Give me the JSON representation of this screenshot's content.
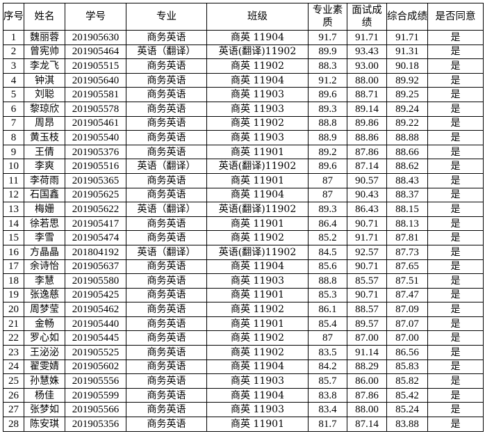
{
  "headers": [
    "序号",
    "姓名",
    "学号",
    "专业",
    "班级",
    "专业素质",
    "面试成绩",
    "综合成绩",
    "是否同意"
  ],
  "rows": [
    [
      "1",
      "魏丽蓉",
      "201905630",
      "商务英语",
      "商英 11904",
      "91.7",
      "91.71",
      "91.71",
      "是"
    ],
    [
      "2",
      "曾宪帅",
      "201905464",
      "英语（翻译）",
      "英语(翻译)11902",
      "89.9",
      "93.43",
      "91.31",
      "是"
    ],
    [
      "3",
      "李龙飞",
      "201905515",
      "商务英语",
      "商英 11902",
      "88.3",
      "93.00",
      "90.18",
      "是"
    ],
    [
      "4",
      "钟淇",
      "201905640",
      "商务英语",
      "商英 11904",
      "91.2",
      "88.00",
      "89.92",
      "是"
    ],
    [
      "5",
      "刘聪",
      "201905581",
      "商务英语",
      "商英 11903",
      "89.6",
      "88.71",
      "89.25",
      "是"
    ],
    [
      "6",
      "黎琼欣",
      "201905578",
      "商务英语",
      "商英 11903",
      "89.3",
      "89.14",
      "89.24",
      "是"
    ],
    [
      "7",
      "周昂",
      "201905461",
      "商务英语",
      "商英 11902",
      "88.8",
      "89.86",
      "89.22",
      "是"
    ],
    [
      "8",
      "黄玉枝",
      "201905540",
      "商务英语",
      "商英 11903",
      "88.9",
      "88.86",
      "88.88",
      "是"
    ],
    [
      "9",
      "王倩",
      "201905376",
      "商务英语",
      "商英 11901",
      "89.2",
      "87.86",
      "88.66",
      "是"
    ],
    [
      "10",
      "李爽",
      "201905516",
      "英语（翻译）",
      "英语(翻译)11902",
      "89.6",
      "87.14",
      "88.62",
      "是"
    ],
    [
      "11",
      "李荷雨",
      "201905365",
      "商务英语",
      "商英 11901",
      "87",
      "90.57",
      "88.43",
      "是"
    ],
    [
      "12",
      "石国鑫",
      "201905625",
      "商务英语",
      "商英 11904",
      "87",
      "90.43",
      "88.37",
      "是"
    ],
    [
      "13",
      "梅姗",
      "201905622",
      "英语（翻译）",
      "英语(翻译)11902",
      "89.3",
      "86.43",
      "88.15",
      "是"
    ],
    [
      "14",
      "徐若思",
      "201905417",
      "商务英语",
      "商英 11901",
      "86.4",
      "90.71",
      "88.13",
      "是"
    ],
    [
      "15",
      "李雪",
      "201905474",
      "商务英语",
      "商英 11902",
      "85.2",
      "91.71",
      "87.81",
      "是"
    ],
    [
      "16",
      "方晶晶",
      "201804192",
      "英语（翻译）",
      "英语(翻译)11902",
      "84.5",
      "92.57",
      "87.73",
      "是"
    ],
    [
      "17",
      "余诗怡",
      "201905637",
      "商务英语",
      "商英 11904",
      "85.6",
      "90.71",
      "87.65",
      "是"
    ],
    [
      "18",
      "李慧",
      "201905580",
      "商务英语",
      "商英 11903",
      "88.8",
      "85.57",
      "87.51",
      "是"
    ],
    [
      "19",
      "张逸慈",
      "201905425",
      "商务英语",
      "商英 11901",
      "85.3",
      "90.71",
      "87.47",
      "是"
    ],
    [
      "20",
      "周梦莹",
      "201905462",
      "商务英语",
      "商英 11902",
      "86.1",
      "88.57",
      "87.09",
      "是"
    ],
    [
      "21",
      "金畅",
      "201905440",
      "商务英语",
      "商英 11901",
      "85.4",
      "89.57",
      "87.07",
      "是"
    ],
    [
      "22",
      "罗心如",
      "201905445",
      "商务英语",
      "商英 11902",
      "87",
      "87.00",
      "87.00",
      "是"
    ],
    [
      "23",
      "王泌泌",
      "201905525",
      "商务英语",
      "商英 11902",
      "83.5",
      "91.14",
      "86.56",
      "是"
    ],
    [
      "24",
      "翟雯婧",
      "201905602",
      "商务英语",
      "商英 11904",
      "84.2",
      "88.29",
      "85.83",
      "是"
    ],
    [
      "25",
      "孙慧姝",
      "201905556",
      "商务英语",
      "商英 11903",
      "85.7",
      "86.00",
      "85.82",
      "是"
    ],
    [
      "26",
      "杨佳",
      "201905599",
      "商务英语",
      "商英 11904",
      "83.8",
      "87.86",
      "85.42",
      "是"
    ],
    [
      "27",
      "张梦如",
      "201905566",
      "商务英语",
      "商英 11903",
      "83.4",
      "88.00",
      "85.24",
      "是"
    ],
    [
      "28",
      "陈安琪",
      "201905356",
      "商务英语",
      "商英 11901",
      "81.7",
      "87.14",
      "83.88",
      "是"
    ]
  ]
}
